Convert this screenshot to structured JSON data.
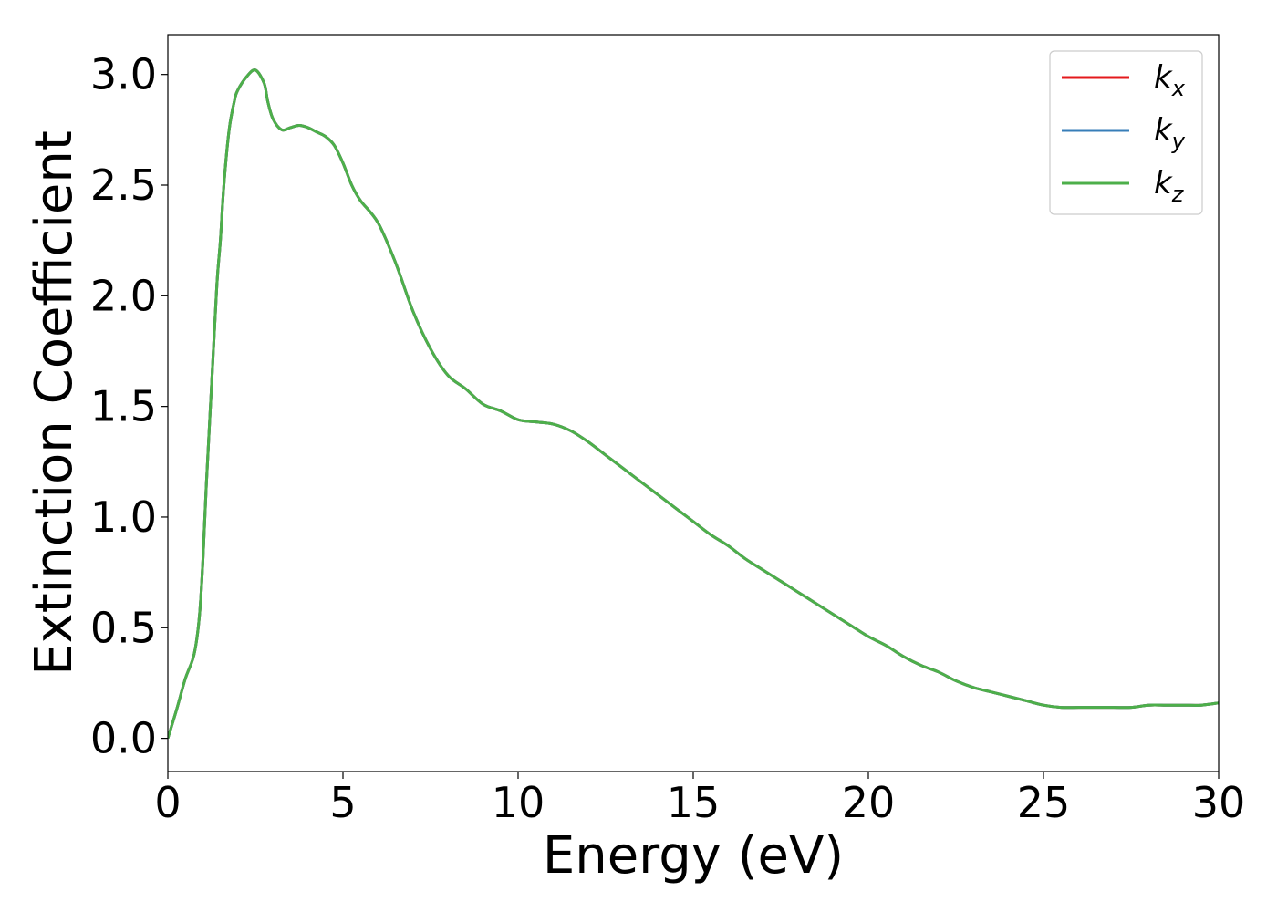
{
  "chart_data": {
    "type": "line",
    "title": "",
    "xlabel": "Energy (eV)",
    "ylabel": "Extinction Coefficient",
    "xlim": [
      0,
      30
    ],
    "ylim": [
      -0.15,
      3.18
    ],
    "xticks": [
      0,
      5,
      10,
      15,
      20,
      25,
      30
    ],
    "xtick_labels": [
      "0",
      "5",
      "10",
      "15",
      "20",
      "25",
      "30"
    ],
    "yticks": [
      0.0,
      0.5,
      1.0,
      1.5,
      2.0,
      2.5,
      3.0
    ],
    "ytick_labels": [
      "0.0",
      "0.5",
      "1.0",
      "1.5",
      "2.0",
      "2.5",
      "3.0"
    ],
    "grid": false,
    "legend_position": "top-right",
    "x": [
      0,
      0.25,
      0.5,
      0.75,
      0.9,
      1.0,
      1.1,
      1.25,
      1.4,
      1.5,
      1.6,
      1.75,
      1.9,
      2.0,
      2.25,
      2.5,
      2.75,
      2.85,
      3.0,
      3.25,
      3.5,
      3.75,
      4.0,
      4.25,
      4.5,
      4.75,
      5.0,
      5.25,
      5.5,
      6.0,
      6.5,
      7.0,
      7.5,
      8.0,
      8.5,
      9.0,
      9.5,
      10.0,
      10.5,
      11.0,
      11.5,
      12.0,
      12.5,
      13.0,
      13.5,
      14.0,
      14.5,
      15.0,
      15.5,
      16.0,
      16.5,
      17.0,
      17.5,
      18.0,
      18.5,
      19.0,
      19.5,
      20.0,
      20.5,
      21.0,
      21.5,
      22.0,
      22.5,
      23.0,
      23.5,
      24.0,
      24.5,
      25.0,
      25.5,
      26.0,
      26.5,
      27.0,
      27.5,
      28.0,
      28.5,
      29.0,
      29.5,
      30.0
    ],
    "series": [
      {
        "name": "k_x",
        "color": "#e41a1c",
        "values": [
          0.0,
          0.13,
          0.27,
          0.38,
          0.55,
          0.8,
          1.15,
          1.6,
          2.05,
          2.25,
          2.5,
          2.75,
          2.88,
          2.93,
          2.99,
          3.02,
          2.96,
          2.88,
          2.8,
          2.75,
          2.76,
          2.77,
          2.76,
          2.74,
          2.72,
          2.68,
          2.6,
          2.5,
          2.43,
          2.33,
          2.15,
          1.93,
          1.76,
          1.64,
          1.58,
          1.51,
          1.48,
          1.44,
          1.43,
          1.42,
          1.39,
          1.34,
          1.28,
          1.22,
          1.16,
          1.1,
          1.04,
          0.98,
          0.92,
          0.87,
          0.81,
          0.76,
          0.71,
          0.66,
          0.61,
          0.56,
          0.51,
          0.46,
          0.42,
          0.37,
          0.33,
          0.3,
          0.26,
          0.23,
          0.21,
          0.19,
          0.17,
          0.15,
          0.14,
          0.14,
          0.14,
          0.14,
          0.14,
          0.15,
          0.15,
          0.15,
          0.15,
          0.16
        ]
      },
      {
        "name": "k_y",
        "color": "#377eb8",
        "values": [
          0.0,
          0.13,
          0.27,
          0.38,
          0.55,
          0.8,
          1.15,
          1.6,
          2.05,
          2.25,
          2.5,
          2.75,
          2.88,
          2.93,
          2.99,
          3.02,
          2.96,
          2.88,
          2.8,
          2.75,
          2.76,
          2.77,
          2.76,
          2.74,
          2.72,
          2.68,
          2.6,
          2.5,
          2.43,
          2.33,
          2.15,
          1.93,
          1.76,
          1.64,
          1.58,
          1.51,
          1.48,
          1.44,
          1.43,
          1.42,
          1.39,
          1.34,
          1.28,
          1.22,
          1.16,
          1.1,
          1.04,
          0.98,
          0.92,
          0.87,
          0.81,
          0.76,
          0.71,
          0.66,
          0.61,
          0.56,
          0.51,
          0.46,
          0.42,
          0.37,
          0.33,
          0.3,
          0.26,
          0.23,
          0.21,
          0.19,
          0.17,
          0.15,
          0.14,
          0.14,
          0.14,
          0.14,
          0.14,
          0.15,
          0.15,
          0.15,
          0.15,
          0.16
        ]
      },
      {
        "name": "k_z",
        "color": "#4daf4a",
        "values": [
          0.0,
          0.13,
          0.27,
          0.38,
          0.55,
          0.8,
          1.15,
          1.6,
          2.05,
          2.25,
          2.5,
          2.75,
          2.88,
          2.93,
          2.99,
          3.02,
          2.96,
          2.88,
          2.8,
          2.75,
          2.76,
          2.77,
          2.76,
          2.74,
          2.72,
          2.68,
          2.6,
          2.5,
          2.43,
          2.33,
          2.15,
          1.93,
          1.76,
          1.64,
          1.58,
          1.51,
          1.48,
          1.44,
          1.43,
          1.42,
          1.39,
          1.34,
          1.28,
          1.22,
          1.16,
          1.1,
          1.04,
          0.98,
          0.92,
          0.87,
          0.81,
          0.76,
          0.71,
          0.66,
          0.61,
          0.56,
          0.51,
          0.46,
          0.42,
          0.37,
          0.33,
          0.3,
          0.26,
          0.23,
          0.21,
          0.19,
          0.17,
          0.15,
          0.14,
          0.14,
          0.14,
          0.14,
          0.14,
          0.15,
          0.15,
          0.15,
          0.15,
          0.16
        ]
      }
    ],
    "legend": [
      {
        "base": "k",
        "sub": "x",
        "color": "#e41a1c"
      },
      {
        "base": "k",
        "sub": "y",
        "color": "#377eb8"
      },
      {
        "base": "k",
        "sub": "z",
        "color": "#4daf4a"
      }
    ]
  }
}
